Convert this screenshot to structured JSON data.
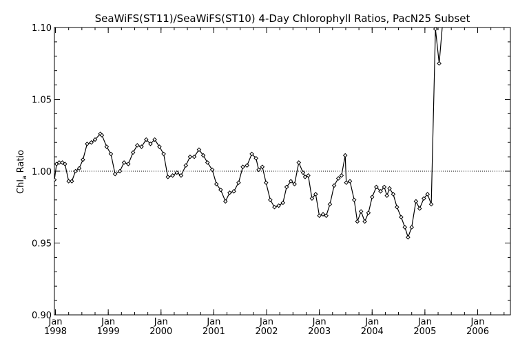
{
  "chart_data": {
    "type": "line",
    "title": "SeaWiFS(ST11)/SeaWiFS(ST10) 4-Day Chlorophyll Ratios, PacN25 Subset",
    "ylabel_main": "Chl",
    "ylabel_sub": "a",
    "ylabel_rest": " Ratio",
    "ylim": [
      0.9,
      1.1
    ],
    "y_ticks": [
      {
        "value": 0.9,
        "label": "0.90"
      },
      {
        "value": 0.95,
        "label": "0.95"
      },
      {
        "value": 1.0,
        "label": "1.00"
      },
      {
        "value": 1.05,
        "label": "1.05"
      },
      {
        "value": 1.1,
        "label": "1.10"
      }
    ],
    "reference_line": 1.0,
    "reference_style": "dotted",
    "xlim": [
      1997.98,
      2006.62
    ],
    "x_ticks": [
      {
        "value": 1998.0,
        "month": "Jan",
        "year": "1998"
      },
      {
        "value": 1999.0,
        "month": "Jan",
        "year": "1999"
      },
      {
        "value": 2000.0,
        "month": "Jan",
        "year": "2000"
      },
      {
        "value": 2001.0,
        "month": "Jan",
        "year": "2001"
      },
      {
        "value": 2002.0,
        "month": "Jan",
        "year": "2002"
      },
      {
        "value": 2003.0,
        "month": "Jan",
        "year": "2003"
      },
      {
        "value": 2004.0,
        "month": "Jan",
        "year": "2004"
      },
      {
        "value": 2005.0,
        "month": "Jan",
        "year": "2005"
      },
      {
        "value": 2006.0,
        "month": "Jan",
        "year": "2006"
      }
    ],
    "x_minor_step": 0.25,
    "grid": false,
    "marker": "diamond",
    "series": [
      {
        "points": [
          [
            1997.98,
            0.994
          ],
          [
            1998.02,
            1.005
          ],
          [
            1998.07,
            1.006
          ],
          [
            1998.13,
            1.006
          ],
          [
            1998.18,
            1.005
          ],
          [
            1998.25,
            0.993
          ],
          [
            1998.31,
            0.993
          ],
          [
            1998.38,
            1.0
          ],
          [
            1998.45,
            1.002
          ],
          [
            1998.52,
            1.008
          ],
          [
            1998.6,
            1.019
          ],
          [
            1998.68,
            1.02
          ],
          [
            1998.75,
            1.022
          ],
          [
            1998.85,
            1.026
          ],
          [
            1998.88,
            1.025
          ],
          [
            1998.97,
            1.017
          ],
          [
            1999.05,
            1.012
          ],
          [
            1999.13,
            0.998
          ],
          [
            1999.22,
            1.0
          ],
          [
            1999.3,
            1.006
          ],
          [
            1999.38,
            1.005
          ],
          [
            1999.47,
            1.013
          ],
          [
            1999.55,
            1.018
          ],
          [
            1999.63,
            1.017
          ],
          [
            1999.72,
            1.022
          ],
          [
            1999.8,
            1.019
          ],
          [
            1999.88,
            1.022
          ],
          [
            1999.97,
            1.017
          ],
          [
            2000.05,
            1.012
          ],
          [
            2000.13,
            0.996
          ],
          [
            2000.22,
            0.997
          ],
          [
            2000.3,
            0.999
          ],
          [
            2000.38,
            0.997
          ],
          [
            2000.47,
            1.004
          ],
          [
            2000.55,
            1.01
          ],
          [
            2000.63,
            1.01
          ],
          [
            2000.72,
            1.015
          ],
          [
            2000.8,
            1.011
          ],
          [
            2000.88,
            1.006
          ],
          [
            2000.97,
            1.001
          ],
          [
            2001.05,
            0.991
          ],
          [
            2001.13,
            0.987
          ],
          [
            2001.22,
            0.979
          ],
          [
            2001.3,
            0.985
          ],
          [
            2001.38,
            0.986
          ],
          [
            2001.47,
            0.992
          ],
          [
            2001.55,
            1.003
          ],
          [
            2001.63,
            1.004
          ],
          [
            2001.72,
            1.012
          ],
          [
            2001.8,
            1.009
          ],
          [
            2001.85,
            1.001
          ],
          [
            2001.92,
            1.003
          ],
          [
            2001.99,
            0.992
          ],
          [
            2002.07,
            0.98
          ],
          [
            2002.15,
            0.975
          ],
          [
            2002.23,
            0.976
          ],
          [
            2002.31,
            0.978
          ],
          [
            2002.38,
            0.989
          ],
          [
            2002.46,
            0.993
          ],
          [
            2002.53,
            0.991
          ],
          [
            2002.61,
            1.006
          ],
          [
            2002.69,
            0.999
          ],
          [
            2002.73,
            0.996
          ],
          [
            2002.79,
            0.997
          ],
          [
            2002.86,
            0.981
          ],
          [
            2002.93,
            0.984
          ],
          [
            2003.0,
            0.969
          ],
          [
            2003.07,
            0.97
          ],
          [
            2003.13,
            0.969
          ],
          [
            2003.2,
            0.977
          ],
          [
            2003.28,
            0.99
          ],
          [
            2003.36,
            0.995
          ],
          [
            2003.42,
            0.997
          ],
          [
            2003.49,
            1.011
          ],
          [
            2003.51,
            0.992
          ],
          [
            2003.58,
            0.993
          ],
          [
            2003.66,
            0.98
          ],
          [
            2003.72,
            0.965
          ],
          [
            2003.79,
            0.972
          ],
          [
            2003.86,
            0.965
          ],
          [
            2003.93,
            0.971
          ],
          [
            2004.0,
            0.982
          ],
          [
            2004.08,
            0.989
          ],
          [
            2004.16,
            0.986
          ],
          [
            2004.23,
            0.989
          ],
          [
            2004.28,
            0.983
          ],
          [
            2004.33,
            0.988
          ],
          [
            2004.4,
            0.984
          ],
          [
            2004.47,
            0.975
          ],
          [
            2004.55,
            0.968
          ],
          [
            2004.62,
            0.961
          ],
          [
            2004.68,
            0.954
          ],
          [
            2004.75,
            0.961
          ],
          [
            2004.83,
            0.979
          ],
          [
            2004.9,
            0.974
          ],
          [
            2004.98,
            0.981
          ],
          [
            2005.05,
            0.984
          ],
          [
            2005.12,
            0.977
          ],
          [
            2005.2,
            1.099
          ],
          [
            2005.27,
            1.075
          ],
          [
            2005.33,
            1.101
          ]
        ]
      }
    ]
  }
}
